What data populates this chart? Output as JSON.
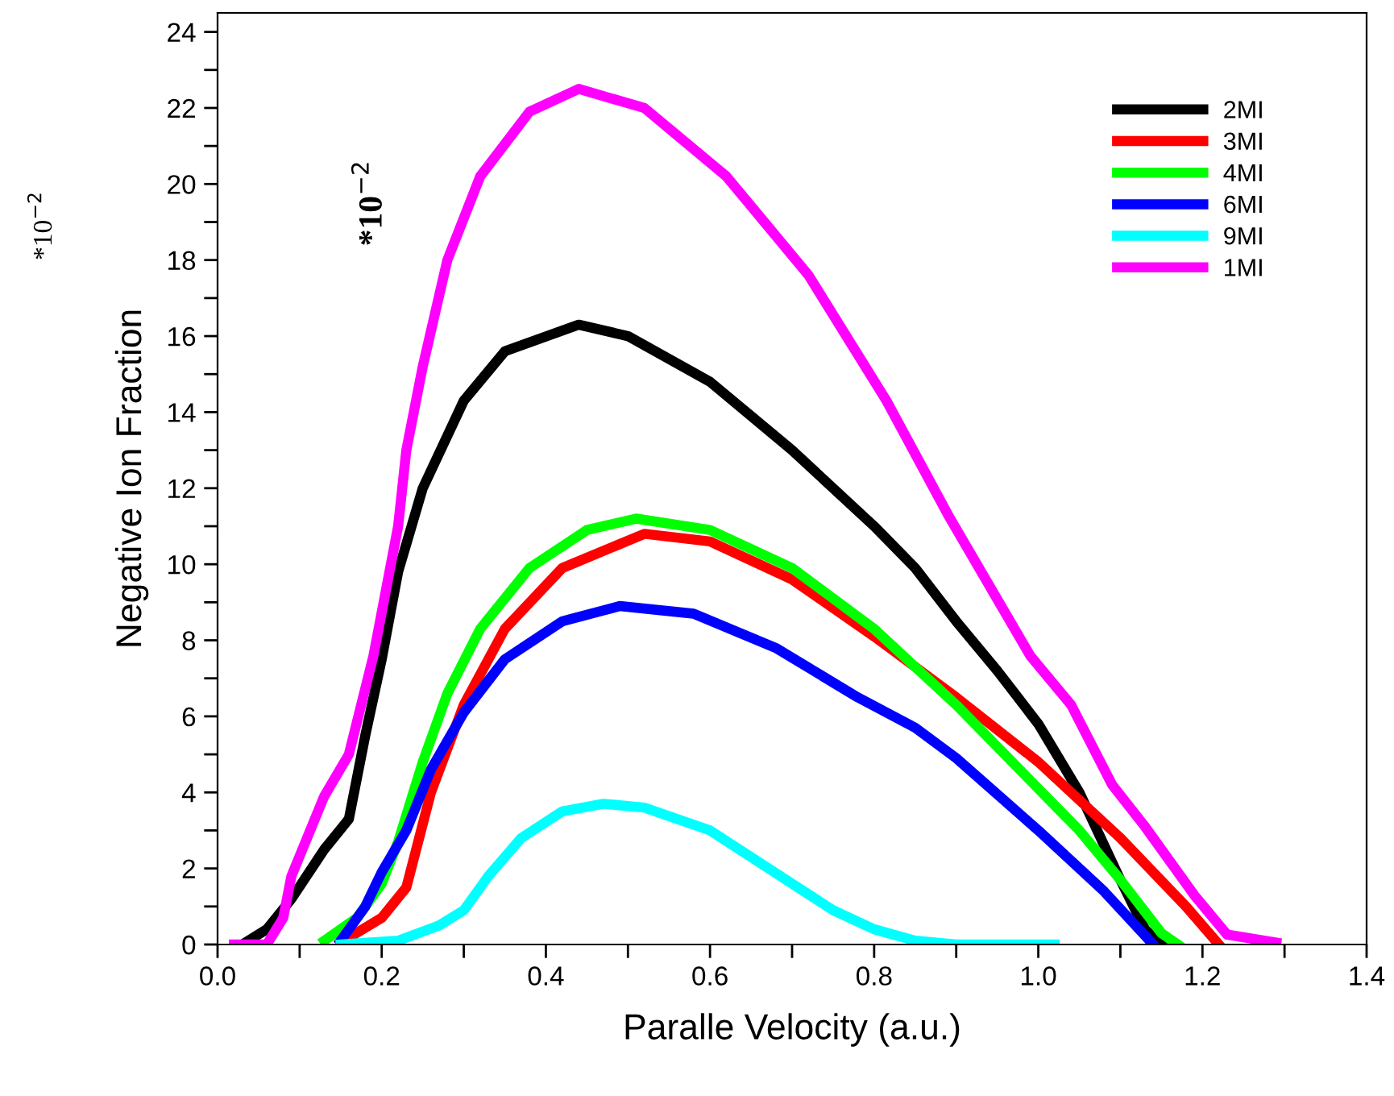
{
  "chart_data": {
    "type": "line",
    "xlabel": "Paralle Velocity (a.u.)",
    "ylabel": "Negative Ion Fraction",
    "annotations": [
      "*10$^{−2}$",
      "*10$^{−2}$"
    ],
    "xlim": [
      0,
      1.4
    ],
    "ylim": [
      0,
      24.5
    ],
    "xticks": [
      {
        "value": 0,
        "label": "0.0"
      },
      {
        "value": 0.1,
        "label": null
      },
      {
        "value": 0.2,
        "label": "0.2"
      },
      {
        "value": 0.3,
        "label": null
      },
      {
        "value": 0.4,
        "label": "0.4"
      },
      {
        "value": 0.5,
        "label": null
      },
      {
        "value": 0.6,
        "label": "0.6"
      },
      {
        "value": 0.7,
        "label": null
      },
      {
        "value": 0.8,
        "label": "0.8"
      },
      {
        "value": 0.9,
        "label": null
      },
      {
        "value": 1.0,
        "label": "1.0"
      },
      {
        "value": 1.1,
        "label": null
      },
      {
        "value": 1.2,
        "label": "1.2"
      },
      {
        "value": 1.3,
        "label": null
      },
      {
        "value": 1.4,
        "label": "1.4"
      }
    ],
    "yticks": [
      0,
      {
        "value": 1,
        "label": null
      },
      2,
      {
        "value": 3,
        "label": null
      },
      4,
      {
        "value": 5,
        "label": null
      },
      6,
      {
        "value": 7,
        "label": null
      },
      8,
      {
        "value": 9,
        "label": null
      },
      10,
      {
        "value": 11,
        "label": null
      },
      12,
      {
        "value": 13,
        "label": null
      },
      14,
      {
        "value": 15,
        "label": null
      },
      16,
      {
        "value": 17,
        "label": null
      },
      18,
      {
        "value": 19,
        "label": null
      },
      20,
      {
        "value": 21,
        "label": null
      },
      22,
      {
        "value": 23,
        "label": null
      },
      24
    ],
    "grid": false,
    "legend": "top right",
    "marker": "none",
    "line_style": "solid",
    "series": [
      {
        "name": "2MI",
        "color": "#000000",
        "x": [
          0.03,
          0.06,
          0.09,
          0.13,
          0.16,
          0.18,
          0.2,
          0.22,
          0.25,
          0.3,
          0.35,
          0.44,
          0.5,
          0.6,
          0.7,
          0.8,
          0.85,
          0.9,
          0.95,
          1.0,
          1.05,
          1.1,
          1.13,
          1.15
        ],
        "values": [
          0,
          0.4,
          1.2,
          2.5,
          3.3,
          5.5,
          7.5,
          9.8,
          12,
          14.3,
          15.6,
          16.3,
          16,
          14.8,
          13,
          11,
          9.9,
          8.5,
          7.2,
          5.8,
          4,
          1.7,
          0.4,
          0
        ]
      },
      {
        "name": "3MI",
        "color": "#ff0000",
        "x": [
          0.15,
          0.2,
          0.23,
          0.26,
          0.3,
          0.35,
          0.42,
          0.52,
          0.6,
          0.7,
          0.8,
          0.9,
          1.0,
          1.1,
          1.18,
          1.22
        ],
        "values": [
          0.05,
          0.7,
          1.5,
          4,
          6.3,
          8.3,
          9.9,
          10.8,
          10.6,
          9.6,
          8.1,
          6.5,
          4.8,
          2.8,
          1.0,
          0
        ]
      },
      {
        "name": "4MI",
        "color": "#00ff00",
        "x": [
          0.13,
          0.17,
          0.2,
          0.22,
          0.25,
          0.28,
          0.32,
          0.38,
          0.45,
          0.51,
          0.6,
          0.7,
          0.8,
          0.9,
          1.0,
          1.05,
          1.1,
          1.15,
          1.17
        ],
        "values": [
          0.1,
          0.7,
          1.6,
          2.7,
          4.8,
          6.6,
          8.3,
          9.9,
          10.9,
          11.2,
          10.9,
          9.9,
          8.3,
          6.3,
          4.1,
          3,
          1.7,
          0.3,
          0
        ]
      },
      {
        "name": "6MI",
        "color": "#0000ff",
        "x": [
          0.15,
          0.18,
          0.2,
          0.23,
          0.26,
          0.3,
          0.35,
          0.42,
          0.49,
          0.58,
          0.68,
          0.78,
          0.85,
          0.9,
          1.0,
          1.08,
          1.14
        ],
        "values": [
          0.1,
          1.0,
          1.9,
          3.0,
          4.6,
          6.1,
          7.5,
          8.5,
          8.9,
          8.7,
          7.8,
          6.5,
          5.7,
          4.9,
          3.0,
          1.4,
          0
        ]
      },
      {
        "name": "9MI",
        "color": "#00ffff",
        "x": [
          0.15,
          0.22,
          0.27,
          0.3,
          0.33,
          0.37,
          0.42,
          0.47,
          0.52,
          0.6,
          0.7,
          0.75,
          0.8,
          0.85,
          0.9,
          1.02
        ],
        "values": [
          0,
          0.1,
          0.5,
          0.9,
          1.8,
          2.8,
          3.5,
          3.7,
          3.6,
          3.0,
          1.6,
          0.9,
          0.4,
          0.1,
          0,
          0
        ]
      },
      {
        "name": "1MI",
        "color": "#ff00ff",
        "x": [
          0.02,
          0.06,
          0.08,
          0.09,
          0.13,
          0.16,
          0.19,
          0.22,
          0.23,
          0.25,
          0.28,
          0.32,
          0.38,
          0.44,
          0.52,
          0.62,
          0.72,
          0.815,
          0.89,
          0.99,
          1.04,
          1.09,
          1.13,
          1.19,
          1.23,
          1.29
        ],
        "values": [
          0,
          0,
          0.7,
          1.8,
          3.9,
          5,
          7.6,
          11,
          13,
          15.2,
          18,
          20.2,
          21.9,
          22.5,
          22,
          20.2,
          17.6,
          14.3,
          11.3,
          7.6,
          6.3,
          4.2,
          3.1,
          1.3,
          0.26,
          0.05
        ]
      }
    ]
  }
}
